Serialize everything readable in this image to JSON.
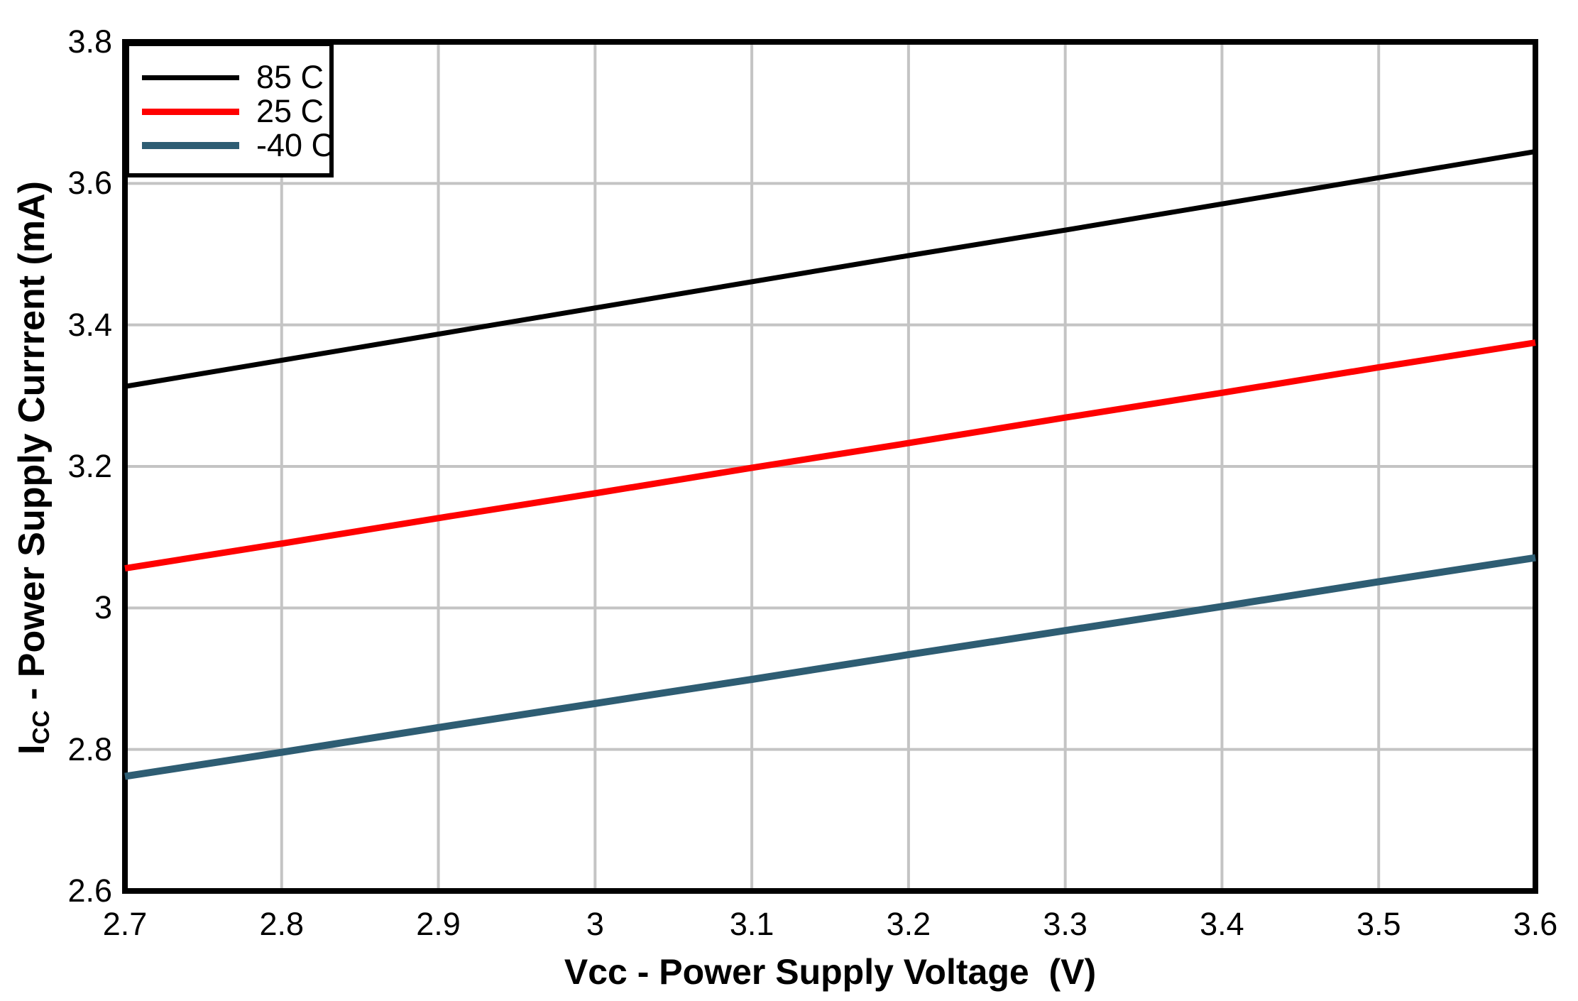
{
  "chart_data": {
    "type": "line",
    "title": "",
    "xlabel": "Vcc - Power Supply Voltage  (V)",
    "ylabel": {
      "prefix": "I",
      "subscript": "CC",
      "rest": " - Power Supply Currrent (mA)"
    },
    "xlim": [
      2.7,
      3.6
    ],
    "ylim": [
      2.6,
      3.8
    ],
    "x_ticks": {
      "values": [
        2.7,
        2.8,
        2.9,
        3.0,
        3.1,
        3.2,
        3.3,
        3.4,
        3.5,
        3.6
      ],
      "labels": [
        "2.7",
        "2.8",
        "2.9",
        "3",
        "3.1",
        "3.2",
        "3.3",
        "3.4",
        "3.5",
        "3.6"
      ]
    },
    "y_ticks": {
      "values": [
        2.6,
        2.8,
        3.0,
        3.2,
        3.4,
        3.6,
        3.8
      ],
      "labels": [
        "2.6",
        "2.8",
        "3",
        "3.2",
        "3.4",
        "3.6",
        "3.8"
      ]
    },
    "grid": {
      "show": true,
      "color": "#C4C4C4",
      "line_width": 4,
      "x_step": 0.1,
      "y_step": 0.2
    },
    "axis": {
      "color": "#000000",
      "border_width": 8
    },
    "legend": {
      "position": "top-left",
      "border_color": "#000000",
      "background": "#FFFFFF"
    },
    "series": [
      {
        "name": "85 C",
        "color": "#000000",
        "stroke_width": 7,
        "x": [
          2.7,
          2.8,
          2.9,
          3.0,
          3.1,
          3.2,
          3.3,
          3.4,
          3.5,
          3.6
        ],
        "y": [
          3.313,
          3.35,
          3.387,
          3.424,
          3.461,
          3.498,
          3.534,
          3.571,
          3.608,
          3.645
        ]
      },
      {
        "name": "25 C",
        "color": "#FF0000",
        "stroke_width": 9,
        "x": [
          2.7,
          2.8,
          2.9,
          3.0,
          3.1,
          3.2,
          3.3,
          3.4,
          3.5,
          3.6
        ],
        "y": [
          3.056,
          3.091,
          3.127,
          3.162,
          3.198,
          3.233,
          3.269,
          3.304,
          3.34,
          3.375
        ]
      },
      {
        "name": "-40 C",
        "color": "#2E5D73",
        "stroke_width": 10,
        "x": [
          2.7,
          2.8,
          2.9,
          3.0,
          3.1,
          3.2,
          3.3,
          3.4,
          3.5,
          3.6
        ],
        "y": [
          2.762,
          2.796,
          2.831,
          2.865,
          2.899,
          2.934,
          2.968,
          3.002,
          3.037,
          3.071
        ]
      }
    ]
  }
}
